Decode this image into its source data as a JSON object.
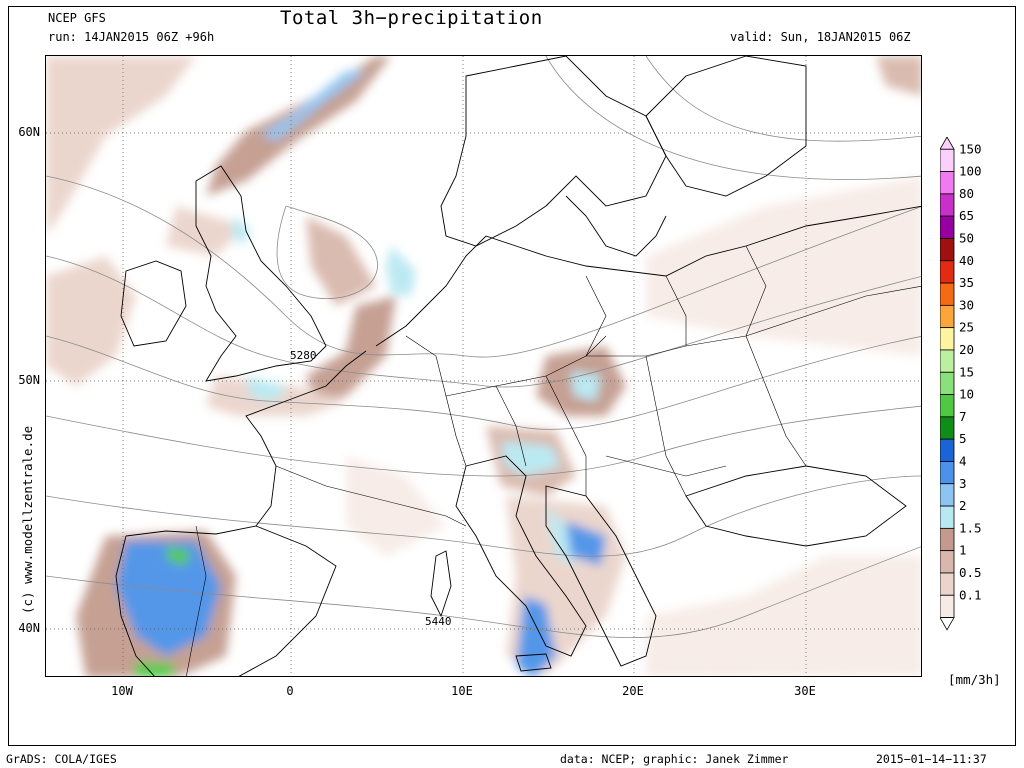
{
  "header": {
    "model": "NCEP GFS",
    "run": "run: 14JAN2015 06Z +96h",
    "title": "Total 3h−precipitation",
    "valid": "valid: Sun, 18JAN2015 06Z"
  },
  "axes": {
    "lat_labels": [
      "60N",
      "50N",
      "40N"
    ],
    "lon_labels": [
      "10W",
      "0",
      "10E",
      "20E",
      "30E"
    ]
  },
  "contour_labels": [
    "5280",
    "5440"
  ],
  "colorbar": {
    "unit": "[mm/3h]",
    "levels": [
      {
        "label": "150",
        "color": "#fbd0fb"
      },
      {
        "label": "100",
        "color": "#f07af0"
      },
      {
        "label": "80",
        "color": "#c830c8"
      },
      {
        "label": "65",
        "color": "#9600a0"
      },
      {
        "label": "50",
        "color": "#a01010"
      },
      {
        "label": "40",
        "color": "#e32a12"
      },
      {
        "label": "35",
        "color": "#f56a14"
      },
      {
        "label": "30",
        "color": "#fba63a"
      },
      {
        "label": "25",
        "color": "#fff5a0"
      },
      {
        "label": "20",
        "color": "#bcf0a0"
      },
      {
        "label": "15",
        "color": "#8ae07a"
      },
      {
        "label": "10",
        "color": "#50c844"
      },
      {
        "label": "7",
        "color": "#108c18"
      },
      {
        "label": "5",
        "color": "#1a64d8"
      },
      {
        "label": "4",
        "color": "#4c92e8"
      },
      {
        "label": "3",
        "color": "#8ec4f2"
      },
      {
        "label": "2",
        "color": "#b8e8f2"
      },
      {
        "label": "1.5",
        "color": "#c29b8e"
      },
      {
        "label": "1",
        "color": "#d8b8ac"
      },
      {
        "label": "0.5",
        "color": "#ead4cb"
      },
      {
        "label": "0.1",
        "color": "#f7ebe6"
      }
    ]
  },
  "watermark": "(c) www.modellzentrale.de",
  "footer": {
    "left": "GrADS: COLA/IGES",
    "center": "data: NCEP; graphic: Janek Zimmer",
    "right": "2015−01−14−11:37"
  }
}
